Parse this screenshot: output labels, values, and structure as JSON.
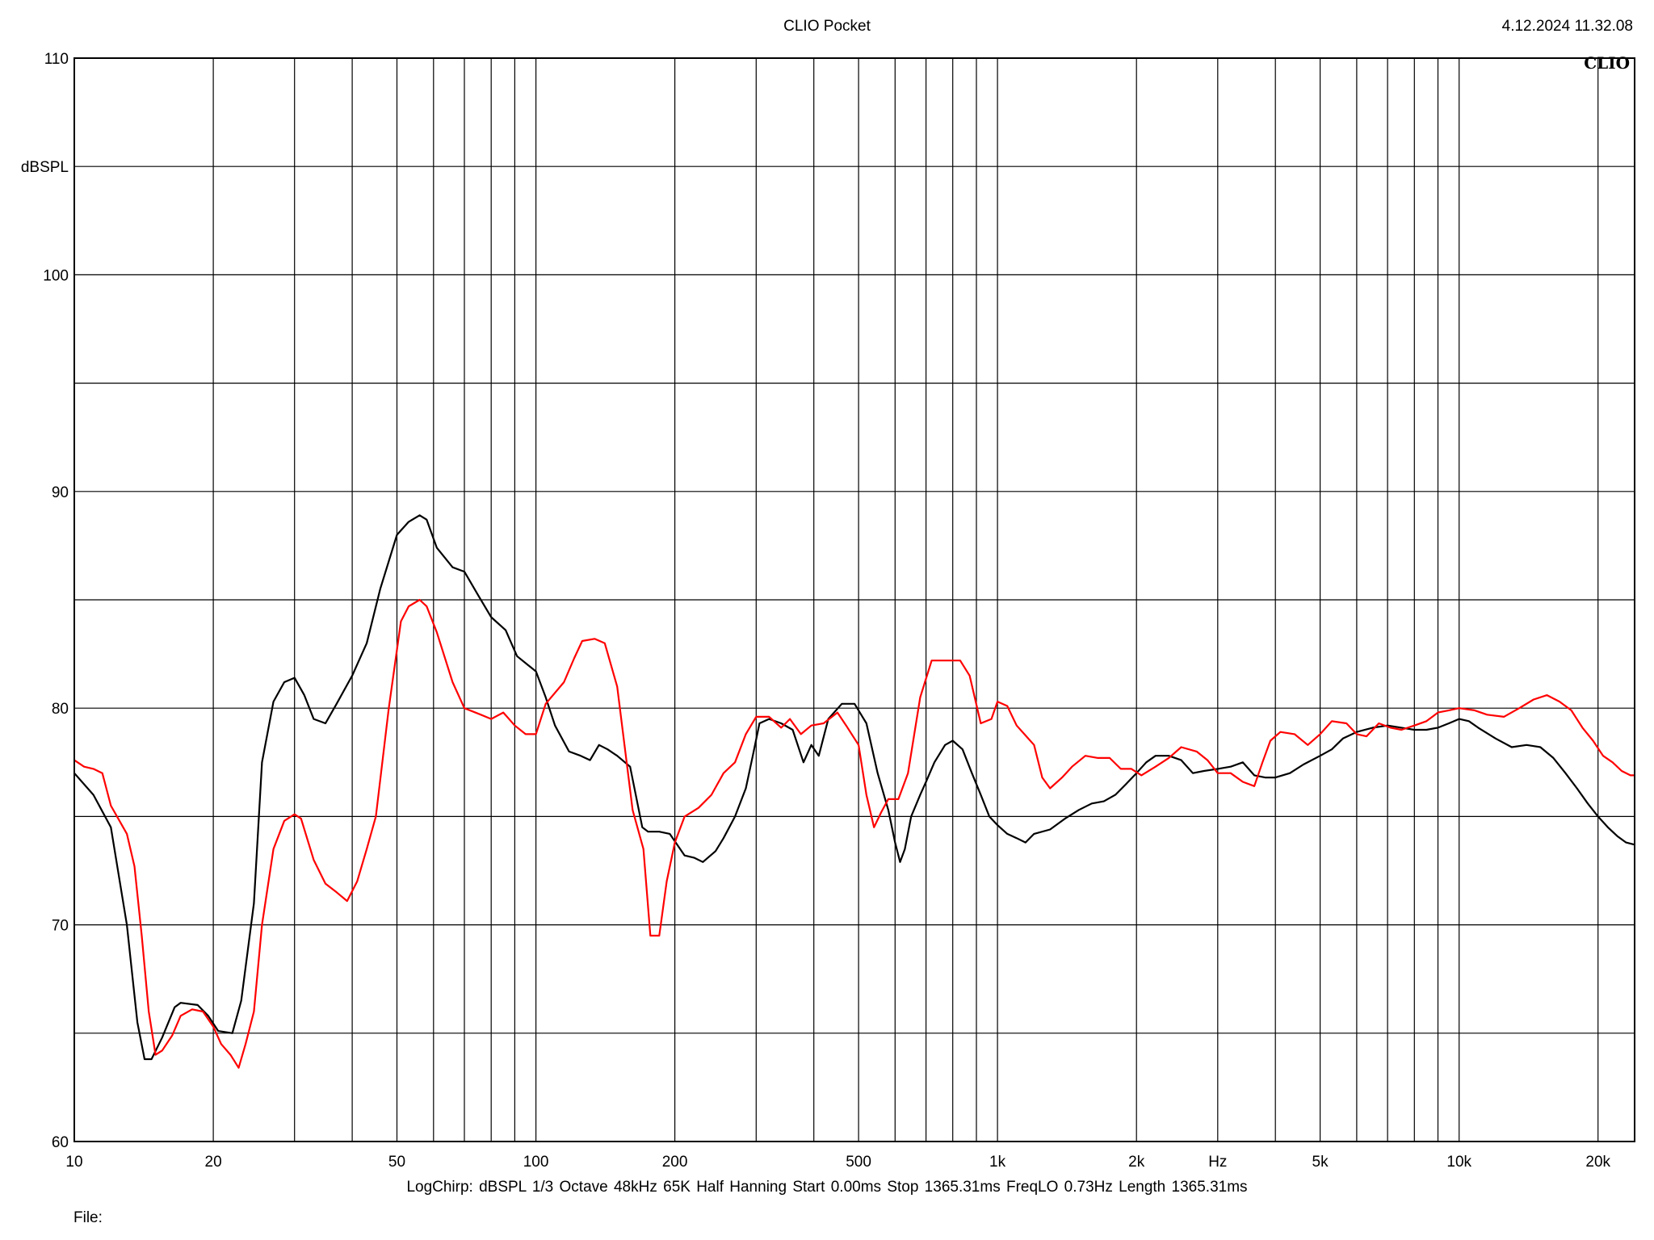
{
  "header": {
    "title": "CLIO Pocket",
    "timestamp": "4.12.2024 11.32.08",
    "brand": "CLIO"
  },
  "footer": {
    "params": "LogChirp:  dBSPL   1/3 Octave   48kHz   65K   Half Hanning   Start 0.00ms    Stop 1365.31ms    FreqLO 0.73Hz    Length 1365.31ms",
    "file_label": "File:"
  },
  "chart_data": {
    "type": "line",
    "title": "CLIO Pocket",
    "xlabel": "Hz",
    "ylabel": "dBSPL",
    "x_scale": "log",
    "xlim": [
      10,
      24000
    ],
    "ylim": [
      60,
      110
    ],
    "grid": true,
    "x_ticks": [
      {
        "value": 10,
        "label": "10"
      },
      {
        "value": 20,
        "label": "20"
      },
      {
        "value": 50,
        "label": "50"
      },
      {
        "value": 100,
        "label": "100"
      },
      {
        "value": 200,
        "label": "200"
      },
      {
        "value": 500,
        "label": "500"
      },
      {
        "value": 1000,
        "label": "1k"
      },
      {
        "value": 2000,
        "label": "2k"
      },
      {
        "value": 5000,
        "label": "5k"
      },
      {
        "value": 10000,
        "label": "10k"
      },
      {
        "value": 20000,
        "label": "20k"
      }
    ],
    "y_ticks": [
      {
        "value": 60,
        "label": "60"
      },
      {
        "value": 70,
        "label": "70"
      },
      {
        "value": 80,
        "label": "80"
      },
      {
        "value": 90,
        "label": "90"
      },
      {
        "value": 100,
        "label": "100"
      },
      {
        "value": 110,
        "label": "110"
      }
    ],
    "series": [
      {
        "color": "#000000",
        "points": [
          [
            10,
            77.0
          ],
          [
            11,
            76.0
          ],
          [
            12,
            74.5
          ],
          [
            13,
            70.0
          ],
          [
            13.7,
            65.5
          ],
          [
            14.2,
            63.8
          ],
          [
            14.7,
            63.8
          ],
          [
            15.5,
            64.8
          ],
          [
            16.5,
            66.2
          ],
          [
            17,
            66.4
          ],
          [
            18.5,
            66.3
          ],
          [
            19.5,
            65.8
          ],
          [
            20.5,
            65.1
          ],
          [
            22,
            65.0
          ],
          [
            23,
            66.5
          ],
          [
            24.5,
            71.0
          ],
          [
            25.5,
            77.5
          ],
          [
            27,
            80.3
          ],
          [
            28.5,
            81.2
          ],
          [
            30,
            81.4
          ],
          [
            31.5,
            80.6
          ],
          [
            33,
            79.5
          ],
          [
            35,
            79.3
          ],
          [
            37,
            80.2
          ],
          [
            40,
            81.5
          ],
          [
            43,
            83.0
          ],
          [
            46,
            85.5
          ],
          [
            50,
            88.0
          ],
          [
            53,
            88.6
          ],
          [
            56,
            88.9
          ],
          [
            58,
            88.7
          ],
          [
            61,
            87.4
          ],
          [
            66,
            86.5
          ],
          [
            70,
            86.3
          ],
          [
            75,
            85.2
          ],
          [
            80,
            84.2
          ],
          [
            86,
            83.6
          ],
          [
            91,
            82.4
          ],
          [
            96,
            82.0
          ],
          [
            100,
            81.7
          ],
          [
            105,
            80.5
          ],
          [
            110,
            79.2
          ],
          [
            118,
            78.0
          ],
          [
            125,
            77.8
          ],
          [
            131,
            77.6
          ],
          [
            137,
            78.3
          ],
          [
            143,
            78.1
          ],
          [
            150,
            77.8
          ],
          [
            160,
            77.3
          ],
          [
            170,
            74.5
          ],
          [
            175,
            74.3
          ],
          [
            185,
            74.3
          ],
          [
            195,
            74.2
          ],
          [
            210,
            73.2
          ],
          [
            220,
            73.1
          ],
          [
            230,
            72.9
          ],
          [
            245,
            73.4
          ],
          [
            255,
            74.0
          ],
          [
            270,
            75.0
          ],
          [
            285,
            76.3
          ],
          [
            295,
            77.8
          ],
          [
            305,
            79.3
          ],
          [
            320,
            79.5
          ],
          [
            340,
            79.3
          ],
          [
            360,
            79.0
          ],
          [
            380,
            77.5
          ],
          [
            395,
            78.3
          ],
          [
            410,
            77.8
          ],
          [
            430,
            79.5
          ],
          [
            460,
            80.2
          ],
          [
            490,
            80.2
          ],
          [
            520,
            79.3
          ],
          [
            550,
            77.0
          ],
          [
            580,
            75.3
          ],
          [
            600,
            73.8
          ],
          [
            615,
            72.9
          ],
          [
            630,
            73.5
          ],
          [
            650,
            75.0
          ],
          [
            680,
            76.0
          ],
          [
            700,
            76.6
          ],
          [
            730,
            77.5
          ],
          [
            770,
            78.3
          ],
          [
            800,
            78.5
          ],
          [
            840,
            78.1
          ],
          [
            880,
            77.0
          ],
          [
            920,
            76.0
          ],
          [
            960,
            75.0
          ],
          [
            1000,
            74.6
          ],
          [
            1050,
            74.2
          ],
          [
            1100,
            74.0
          ],
          [
            1150,
            73.8
          ],
          [
            1200,
            74.2
          ],
          [
            1300,
            74.4
          ],
          [
            1400,
            74.9
          ],
          [
            1500,
            75.3
          ],
          [
            1600,
            75.6
          ],
          [
            1700,
            75.7
          ],
          [
            1800,
            76.0
          ],
          [
            1900,
            76.5
          ],
          [
            2000,
            77.0
          ],
          [
            2100,
            77.5
          ],
          [
            2200,
            77.8
          ],
          [
            2350,
            77.8
          ],
          [
            2500,
            77.6
          ],
          [
            2650,
            77.0
          ],
          [
            2800,
            77.1
          ],
          [
            3000,
            77.2
          ],
          [
            3200,
            77.3
          ],
          [
            3400,
            77.5
          ],
          [
            3600,
            76.9
          ],
          [
            3800,
            76.8
          ],
          [
            4000,
            76.8
          ],
          [
            4300,
            77.0
          ],
          [
            4600,
            77.4
          ],
          [
            5000,
            77.8
          ],
          [
            5300,
            78.1
          ],
          [
            5600,
            78.6
          ],
          [
            6000,
            78.9
          ],
          [
            6500,
            79.1
          ],
          [
            7000,
            79.2
          ],
          [
            7500,
            79.1
          ],
          [
            8000,
            79.0
          ],
          [
            8500,
            79.0
          ],
          [
            9000,
            79.1
          ],
          [
            9500,
            79.3
          ],
          [
            10000,
            79.5
          ],
          [
            10500,
            79.4
          ],
          [
            11000,
            79.1
          ],
          [
            12000,
            78.6
          ],
          [
            13000,
            78.2
          ],
          [
            14000,
            78.3
          ],
          [
            15000,
            78.2
          ],
          [
            16000,
            77.7
          ],
          [
            17000,
            77.0
          ],
          [
            18000,
            76.3
          ],
          [
            19000,
            75.6
          ],
          [
            20000,
            75.0
          ],
          [
            21000,
            74.5
          ],
          [
            22000,
            74.1
          ],
          [
            23000,
            73.8
          ],
          [
            24000,
            73.7
          ]
        ]
      },
      {
        "color": "#ff0000",
        "points": [
          [
            10,
            77.6
          ],
          [
            10.5,
            77.3
          ],
          [
            11,
            77.2
          ],
          [
            11.5,
            77.0
          ],
          [
            12,
            75.5
          ],
          [
            13,
            74.2
          ],
          [
            13.5,
            72.7
          ],
          [
            14,
            69.5
          ],
          [
            14.5,
            66.0
          ],
          [
            15,
            64.0
          ],
          [
            15.5,
            64.2
          ],
          [
            16.3,
            64.9
          ],
          [
            17,
            65.8
          ],
          [
            18,
            66.1
          ],
          [
            19,
            66.0
          ],
          [
            20,
            65.3
          ],
          [
            20.8,
            64.5
          ],
          [
            21.8,
            64.0
          ],
          [
            22.7,
            63.4
          ],
          [
            23.5,
            64.5
          ],
          [
            24.5,
            66.0
          ],
          [
            25.5,
            70.0
          ],
          [
            27,
            73.5
          ],
          [
            28.5,
            74.8
          ],
          [
            30,
            75.1
          ],
          [
            31,
            74.9
          ],
          [
            33,
            73.0
          ],
          [
            35,
            71.9
          ],
          [
            37,
            71.5
          ],
          [
            39,
            71.1
          ],
          [
            41,
            72.0
          ],
          [
            43,
            73.5
          ],
          [
            45,
            75.0
          ],
          [
            48,
            80.0
          ],
          [
            51,
            84.0
          ],
          [
            53,
            84.7
          ],
          [
            56,
            85.0
          ],
          [
            58,
            84.7
          ],
          [
            61,
            83.5
          ],
          [
            66,
            81.2
          ],
          [
            70,
            80.0
          ],
          [
            76,
            79.7
          ],
          [
            80,
            79.5
          ],
          [
            85,
            79.8
          ],
          [
            90,
            79.2
          ],
          [
            95,
            78.8
          ],
          [
            100,
            78.8
          ],
          [
            105,
            80.2
          ],
          [
            115,
            81.2
          ],
          [
            121,
            82.3
          ],
          [
            126,
            83.1
          ],
          [
            134,
            83.2
          ],
          [
            141,
            83.0
          ],
          [
            150,
            81.0
          ],
          [
            162,
            75.3
          ],
          [
            171,
            73.5
          ],
          [
            177,
            69.5
          ],
          [
            185,
            69.5
          ],
          [
            192,
            72.0
          ],
          [
            200,
            73.8
          ],
          [
            210,
            75.0
          ],
          [
            225,
            75.4
          ],
          [
            240,
            76.0
          ],
          [
            255,
            77.0
          ],
          [
            270,
            77.5
          ],
          [
            285,
            78.8
          ],
          [
            300,
            79.6
          ],
          [
            320,
            79.6
          ],
          [
            340,
            79.1
          ],
          [
            355,
            79.5
          ],
          [
            375,
            78.8
          ],
          [
            395,
            79.2
          ],
          [
            420,
            79.3
          ],
          [
            450,
            79.8
          ],
          [
            470,
            79.2
          ],
          [
            500,
            78.3
          ],
          [
            520,
            76.0
          ],
          [
            540,
            74.5
          ],
          [
            560,
            75.2
          ],
          [
            580,
            75.8
          ],
          [
            610,
            75.8
          ],
          [
            640,
            77.0
          ],
          [
            680,
            80.5
          ],
          [
            720,
            82.2
          ],
          [
            780,
            82.2
          ],
          [
            830,
            82.2
          ],
          [
            870,
            81.5
          ],
          [
            920,
            79.3
          ],
          [
            970,
            79.5
          ],
          [
            1000,
            80.3
          ],
          [
            1050,
            80.1
          ],
          [
            1100,
            79.2
          ],
          [
            1200,
            78.3
          ],
          [
            1250,
            76.8
          ],
          [
            1300,
            76.3
          ],
          [
            1380,
            76.8
          ],
          [
            1450,
            77.3
          ],
          [
            1550,
            77.8
          ],
          [
            1650,
            77.7
          ],
          [
            1750,
            77.7
          ],
          [
            1850,
            77.2
          ],
          [
            1950,
            77.2
          ],
          [
            2050,
            76.9
          ],
          [
            2200,
            77.3
          ],
          [
            2350,
            77.7
          ],
          [
            2500,
            78.2
          ],
          [
            2700,
            78.0
          ],
          [
            2850,
            77.6
          ],
          [
            3000,
            77.0
          ],
          [
            3200,
            77.0
          ],
          [
            3400,
            76.6
          ],
          [
            3600,
            76.4
          ],
          [
            3750,
            77.5
          ],
          [
            3900,
            78.5
          ],
          [
            4100,
            78.9
          ],
          [
            4400,
            78.8
          ],
          [
            4700,
            78.3
          ],
          [
            5000,
            78.8
          ],
          [
            5300,
            79.4
          ],
          [
            5700,
            79.3
          ],
          [
            6000,
            78.8
          ],
          [
            6300,
            78.7
          ],
          [
            6700,
            79.3
          ],
          [
            7100,
            79.1
          ],
          [
            7500,
            79.0
          ],
          [
            8000,
            79.2
          ],
          [
            8500,
            79.4
          ],
          [
            9000,
            79.8
          ],
          [
            9500,
            79.9
          ],
          [
            10000,
            80.0
          ],
          [
            10800,
            79.9
          ],
          [
            11500,
            79.7
          ],
          [
            12500,
            79.6
          ],
          [
            13500,
            80.0
          ],
          [
            14500,
            80.4
          ],
          [
            15500,
            80.6
          ],
          [
            16500,
            80.3
          ],
          [
            17500,
            79.9
          ],
          [
            18500,
            79.1
          ],
          [
            19500,
            78.5
          ],
          [
            20500,
            77.8
          ],
          [
            21500,
            77.5
          ],
          [
            22500,
            77.1
          ],
          [
            23500,
            76.9
          ],
          [
            24000,
            76.9
          ]
        ]
      }
    ]
  }
}
